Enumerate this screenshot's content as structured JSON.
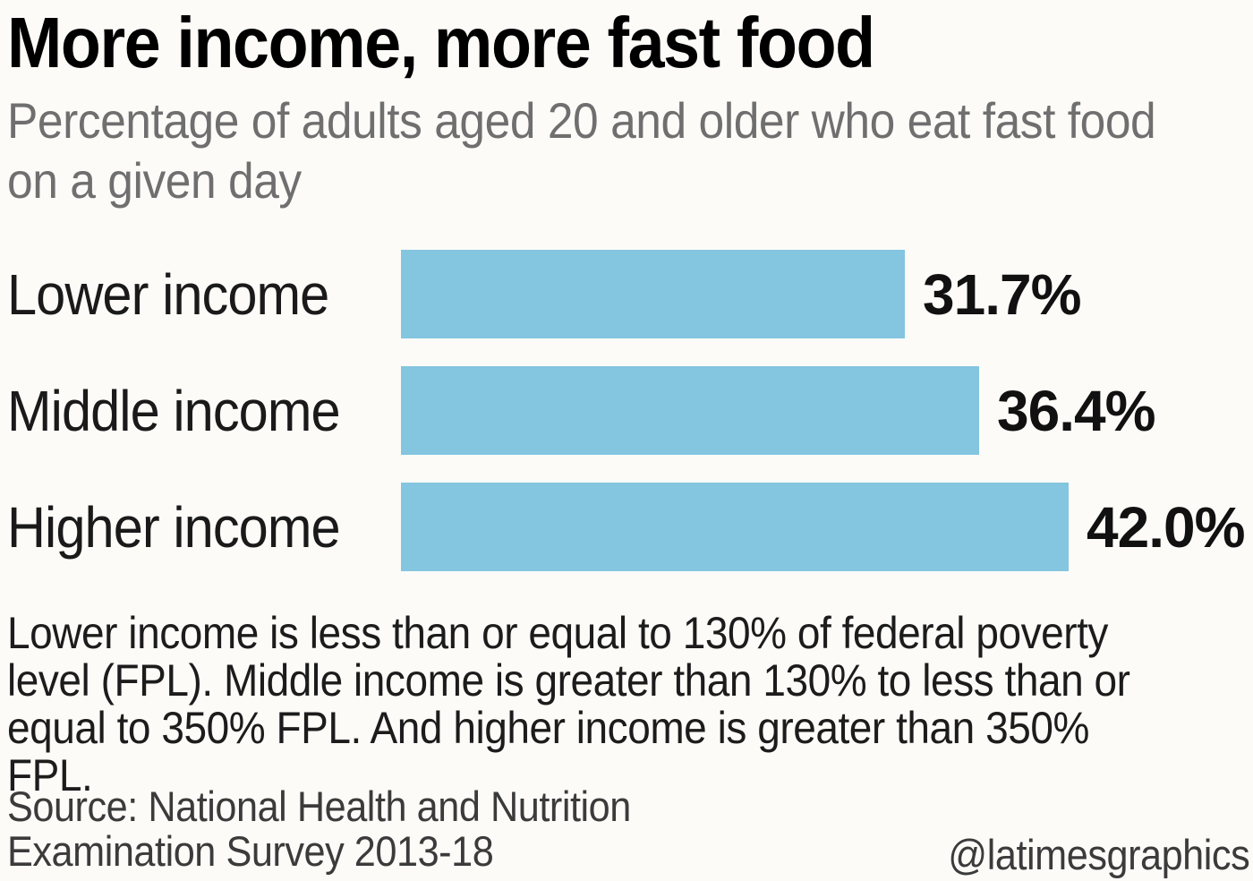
{
  "header": {
    "title": "More income, more fast food",
    "subtitle": "Percentage of adults aged 20 and older who eat fast food on a given day"
  },
  "chart_data": {
    "type": "bar",
    "orientation": "horizontal",
    "title": "More income, more fast food",
    "subtitle": "Percentage of adults aged 20 and older who eat fast food on a given day",
    "categories": [
      "Lower income",
      "Middle income",
      "Higher income"
    ],
    "values": [
      31.7,
      36.4,
      42.0
    ],
    "value_labels": [
      "31.7%",
      "36.4%",
      "42.0%"
    ],
    "xlabel": "",
    "ylabel": "",
    "xlim": [
      0,
      42.0
    ],
    "grid": false,
    "legend": false,
    "bar_color": "#84C5E0",
    "value_label_position": "right-of-bar"
  },
  "footnote": "Lower income is less than or equal to 130% of federal poverty level (FPL). Middle income is greater than 130% to less than or equal to 350% FPL. And higher income is greater than 350% FPL.",
  "source": {
    "line1": "Source: National Health and Nutrition",
    "line2": "Examination Survey 2013-18",
    "credit": "@latimesgraphics"
  },
  "colors": {
    "background": "#FCFBF8",
    "bar": "#84C5E0",
    "title": "#000000",
    "subtitle": "#6F6F6F",
    "label": "#1A1A1A",
    "value": "#111111",
    "footnote": "#1C1C1C",
    "source": "#3B3B3B"
  }
}
